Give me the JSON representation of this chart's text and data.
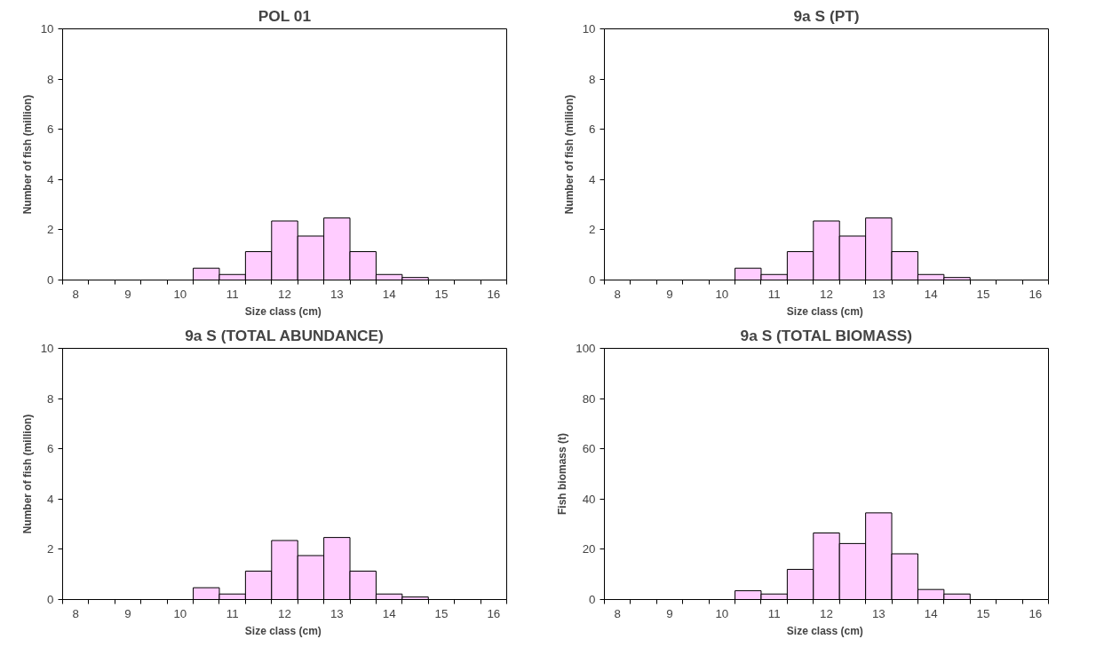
{
  "chart_data": [
    {
      "type": "bar",
      "title": "POL 01",
      "xlabel": "Size class  (cm)",
      "ylabel": "Number of fish (million)",
      "categories": [
        "8",
        null,
        "9",
        null,
        "10",
        null,
        "11",
        null,
        "12",
        null,
        "13",
        null,
        "14",
        null,
        "15",
        null,
        "16"
      ],
      "values": [
        0,
        0,
        0,
        0,
        0,
        0.47,
        0.22,
        1.13,
        2.35,
        1.75,
        2.47,
        1.13,
        0.22,
        0.1,
        0,
        0,
        0
      ],
      "color": "#ffccff",
      "ylim": [
        0,
        10
      ],
      "yticks": [
        0,
        2,
        4,
        6,
        8,
        10
      ]
    },
    {
      "type": "bar",
      "title": "9a S (PT)",
      "xlabel": "Size class  (cm)",
      "ylabel": "Number of fish (million)",
      "categories": [
        "8",
        null,
        "9",
        null,
        "10",
        null,
        "11",
        null,
        "12",
        null,
        "13",
        null,
        "14",
        null,
        "15",
        null,
        "16"
      ],
      "values": [
        0,
        0,
        0,
        0,
        0,
        0.47,
        0.22,
        1.13,
        2.35,
        1.75,
        2.47,
        1.13,
        0.22,
        0.1,
        0,
        0,
        0
      ],
      "color": "#ffccff",
      "ylim": [
        0,
        10
      ],
      "yticks": [
        0,
        2,
        4,
        6,
        8,
        10
      ]
    },
    {
      "type": "bar",
      "title": "9a S (TOTAL ABUNDANCE)",
      "xlabel": "Size class  (cm)",
      "ylabel": "Number of fish (million)",
      "categories": [
        "8",
        null,
        "9",
        null,
        "10",
        null,
        "11",
        null,
        "12",
        null,
        "13",
        null,
        "14",
        null,
        "15",
        null,
        "16"
      ],
      "values": [
        0,
        0,
        0,
        0,
        0,
        0.47,
        0.22,
        1.13,
        2.35,
        1.75,
        2.47,
        1.13,
        0.22,
        0.1,
        0,
        0,
        0
      ],
      "color": "#ffccff",
      "ylim": [
        0,
        10
      ],
      "yticks": [
        0,
        2,
        4,
        6,
        8,
        10
      ]
    },
    {
      "type": "bar",
      "title": "9a S (TOTAL BIOMASS)",
      "xlabel": "Size class  (cm)",
      "ylabel": "Fish biomass (t)",
      "categories": [
        "8",
        null,
        "9",
        null,
        "10",
        null,
        "11",
        null,
        "12",
        null,
        "13",
        null,
        "14",
        null,
        "15",
        null,
        "16"
      ],
      "values": [
        0,
        0,
        0,
        0,
        0,
        3.5,
        2.2,
        12,
        26.5,
        22.3,
        34.5,
        18.2,
        4,
        2.2,
        0,
        0,
        0
      ],
      "color": "#ffccff",
      "ylim": [
        0,
        100
      ],
      "yticks": [
        0,
        20,
        40,
        60,
        80,
        100
      ]
    }
  ]
}
